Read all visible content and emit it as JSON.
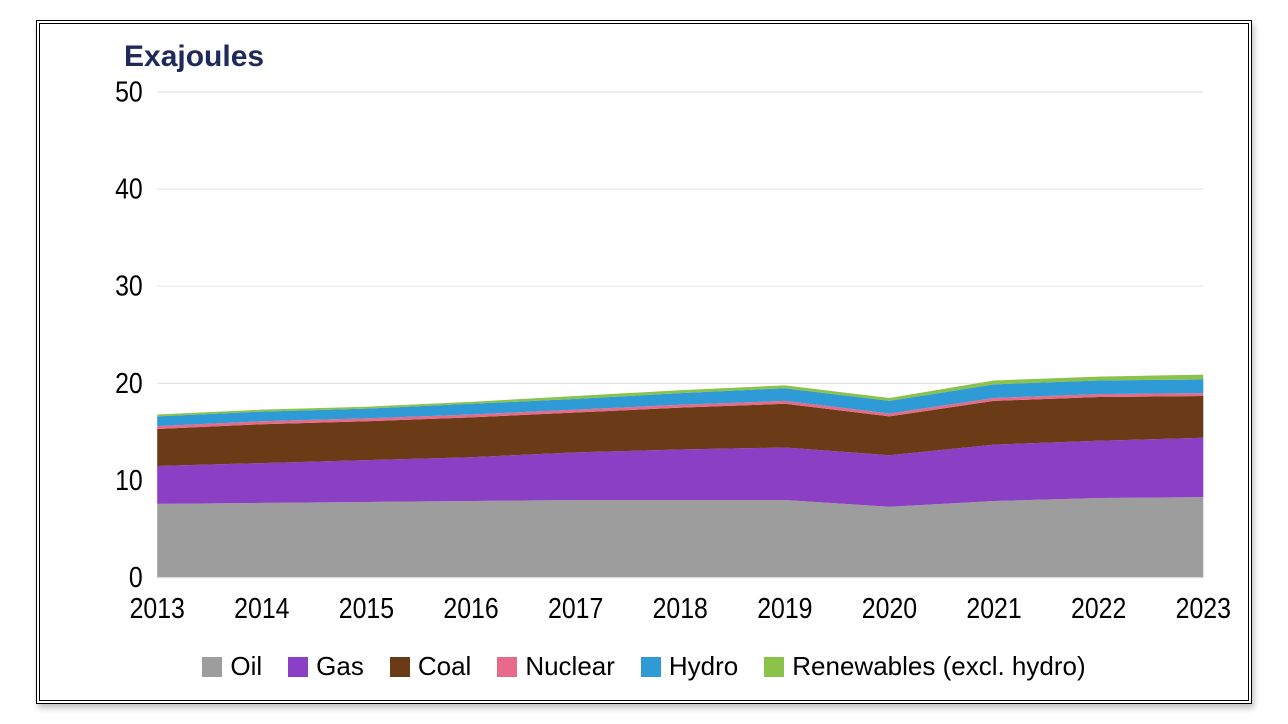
{
  "chart": {
    "type": "stacked-area",
    "title": "Exajoules",
    "title_color": "#1f2a5b",
    "title_fontsize": 30,
    "title_fontweight": 700,
    "background_color": "#ffffff",
    "plot_background": "#ffffff",
    "grid_color": "#e6e6e6",
    "grid_linewidth": 1,
    "axis_label_fontsize": 24,
    "axis_label_color": "#000000",
    "x": {
      "categories": [
        "2013",
        "2014",
        "2015",
        "2016",
        "2017",
        "2018",
        "2019",
        "2020",
        "2021",
        "2022",
        "2023"
      ],
      "tick_fontsize": 24
    },
    "y": {
      "min": 0,
      "max": 50,
      "ticks": [
        0,
        10,
        20,
        30,
        40,
        50
      ],
      "tick_fontsize": 24
    },
    "series": [
      {
        "name": "Oil",
        "color": "#9d9d9d",
        "values": [
          7.6,
          7.7,
          7.8,
          7.9,
          8.0,
          8.0,
          8.0,
          7.3,
          7.9,
          8.2,
          8.3
        ]
      },
      {
        "name": "Gas",
        "color": "#8a3fc4",
        "values": [
          3.9,
          4.1,
          4.3,
          4.5,
          4.9,
          5.2,
          5.4,
          5.3,
          5.8,
          5.9,
          6.1
        ]
      },
      {
        "name": "Coal",
        "color": "#6a3b16",
        "values": [
          3.8,
          4.0,
          4.0,
          4.1,
          4.1,
          4.3,
          4.5,
          4.0,
          4.5,
          4.5,
          4.3
        ]
      },
      {
        "name": "Nuclear",
        "color": "#e86a8a",
        "values": [
          0.3,
          0.3,
          0.3,
          0.3,
          0.3,
          0.3,
          0.3,
          0.3,
          0.3,
          0.3,
          0.3
        ]
      },
      {
        "name": "Hydro",
        "color": "#2e9bd6",
        "values": [
          1.0,
          1.0,
          1.0,
          1.1,
          1.1,
          1.2,
          1.3,
          1.3,
          1.4,
          1.4,
          1.4
        ]
      },
      {
        "name": "Renewables (excl. hydro)",
        "color": "#8ac24a",
        "values": [
          0.2,
          0.2,
          0.2,
          0.2,
          0.3,
          0.3,
          0.3,
          0.3,
          0.4,
          0.4,
          0.5
        ]
      }
    ],
    "legend": {
      "position": "bottom",
      "fontsize": 26,
      "text_color": "#000000",
      "swatch_size": 20
    },
    "frame": {
      "border_style": "double",
      "border_color": "#000000",
      "border_width": 4,
      "shadow": true
    }
  }
}
